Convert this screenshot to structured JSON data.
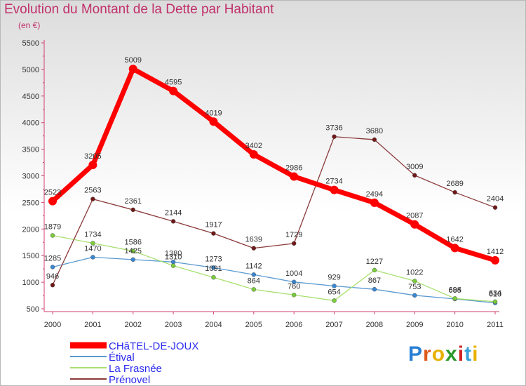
{
  "title": "Evolution du Montant de la Dette par Habitant",
  "subtitle": "(en €)",
  "logo": {
    "text": "Proxiti",
    "letter_colors": [
      "#2a7fd4",
      "#e05a1a",
      "#e8b000",
      "#2a9a2a",
      "#d02020",
      "#3aa0d8",
      "#e8b000"
    ]
  },
  "chart_data": {
    "type": "line",
    "title": "Evolution du Montant de la Dette par Habitant",
    "subtitle": "(en €)",
    "x": [
      "2000",
      "2001",
      "2002",
      "2003",
      "2004",
      "2005",
      "2006",
      "2007",
      "2008",
      "2009",
      "2010",
      "2011"
    ],
    "ylim": [
      500,
      5500
    ],
    "yticks": [
      500,
      1000,
      1500,
      2000,
      2500,
      3000,
      3500,
      4000,
      4500,
      5000,
      5500
    ],
    "grid": false,
    "legend_position": "bottom-left",
    "series": [
      {
        "name": "CHâTEL-DE-JOUX",
        "color": "#ff0000",
        "marker": "#ff0000",
        "emphasis": true,
        "values": [
          2523,
          3205,
          5009,
          4595,
          4019,
          3402,
          2986,
          2734,
          2494,
          2087,
          1642,
          1412
        ]
      },
      {
        "name": "Étival",
        "color": "#5a9ad0",
        "marker": "#3a86d0",
        "values": [
          1285,
          1470,
          1425,
          1380,
          1273,
          1142,
          1004,
          929,
          867,
          753,
          685,
          610
        ]
      },
      {
        "name": "La Frasnée",
        "color": "#a8e070",
        "marker": "#7acc3a",
        "values": [
          1879,
          1734,
          1586,
          1310,
          1091,
          864,
          760,
          654,
          1227,
          1022,
          694,
          634
        ]
      },
      {
        "name": "Prénovel",
        "color": "#8b3a3a",
        "marker": "#701818",
        "values": [
          946,
          2563,
          2361,
          2144,
          1917,
          1639,
          1729,
          3736,
          3680,
          3009,
          2689,
          2404
        ]
      }
    ]
  }
}
